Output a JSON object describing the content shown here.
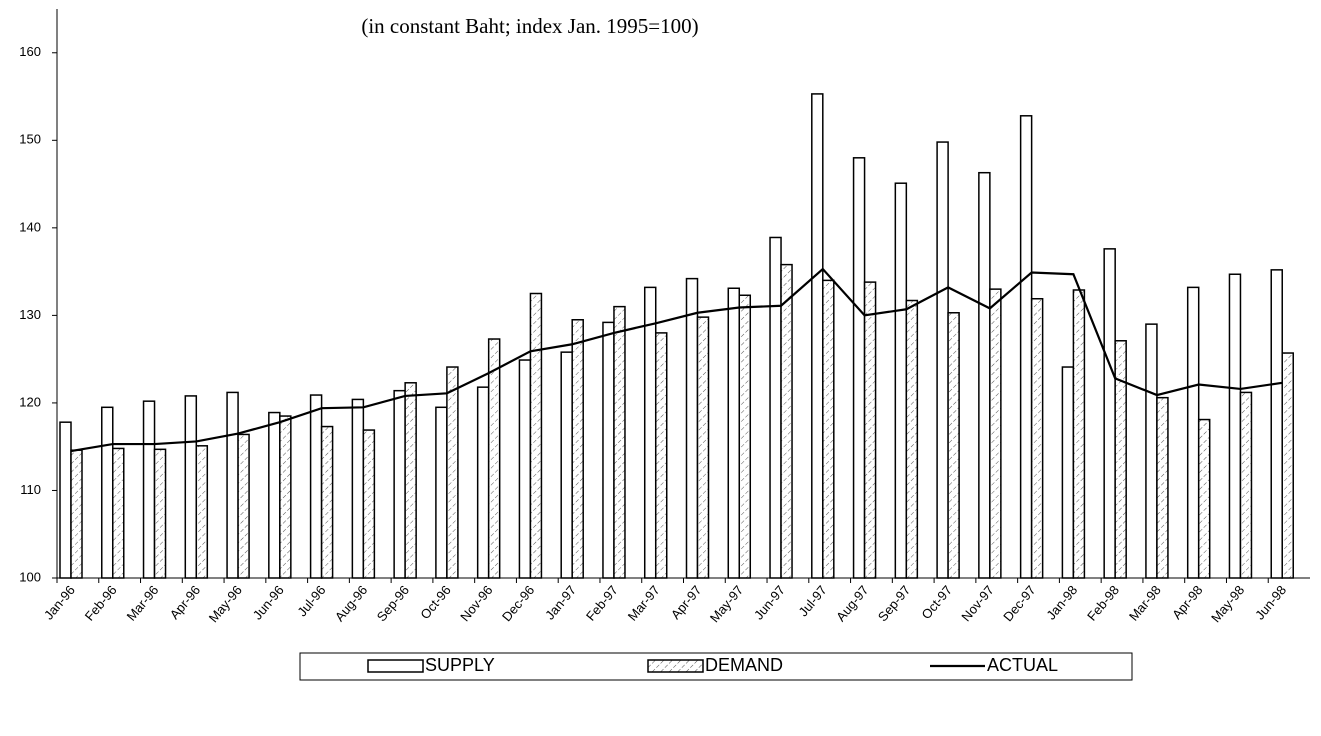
{
  "chart_data": {
    "type": "bar",
    "subtitle": "(in constant Baht; index Jan. 1995=100)",
    "categories": [
      "Jan-96",
      "Feb-96",
      "Mar-96",
      "Apr-96",
      "May-96",
      "Jun-96",
      "Jul-96",
      "Aug-96",
      "Sep-96",
      "Oct-96",
      "Nov-96",
      "Dec-96",
      "Jan-97",
      "Feb-97",
      "Mar-97",
      "Apr-97",
      "May-97",
      "Jun-97",
      "Jul-97",
      "Aug-97",
      "Sep-97",
      "Oct-97",
      "Nov-97",
      "Dec-97",
      "Jan-98",
      "Feb-98",
      "Mar-98",
      "Apr-98",
      "May-98",
      "Jun-98"
    ],
    "series": [
      {
        "name": "SUPPLY",
        "type": "bar",
        "color": "#000000",
        "fill": "#ffffff",
        "values": [
          117.8,
          119.5,
          120.2,
          120.8,
          121.2,
          118.9,
          120.9,
          120.4,
          121.4,
          119.5,
          121.8,
          124.9,
          125.8,
          129.2,
          133.2,
          134.2,
          133.1,
          138.9,
          155.3,
          148.0,
          145.1,
          149.8,
          146.3,
          152.8,
          124.1,
          137.6,
          129.0,
          133.2,
          134.7,
          135.2
        ]
      },
      {
        "name": "DEMAND",
        "type": "bar",
        "color": "#000000",
        "fill": "hatch",
        "values": [
          114.6,
          114.8,
          114.7,
          115.1,
          116.4,
          118.5,
          117.3,
          116.9,
          122.3,
          124.1,
          127.3,
          132.5,
          129.5,
          131.0,
          128.0,
          129.8,
          132.3,
          135.8,
          134.0,
          133.8,
          131.7,
          130.3,
          133.0,
          131.9,
          132.9,
          127.1,
          120.6,
          118.1,
          121.2,
          125.7
        ]
      },
      {
        "name": "ACTUAL",
        "type": "line",
        "color": "#000000",
        "values": [
          114.5,
          115.3,
          115.3,
          115.6,
          116.5,
          117.8,
          119.4,
          119.5,
          120.8,
          121.1,
          123.4,
          125.9,
          126.7,
          128.0,
          129.1,
          130.3,
          130.9,
          131.1,
          135.3,
          130.0,
          130.7,
          133.2,
          130.8,
          134.9,
          134.7,
          122.8,
          120.9,
          122.1,
          121.6,
          122.3
        ]
      }
    ],
    "ylim": [
      100,
      165
    ],
    "yticks": [
      100,
      110,
      120,
      130,
      140,
      150,
      160
    ],
    "legend": "bottom"
  }
}
